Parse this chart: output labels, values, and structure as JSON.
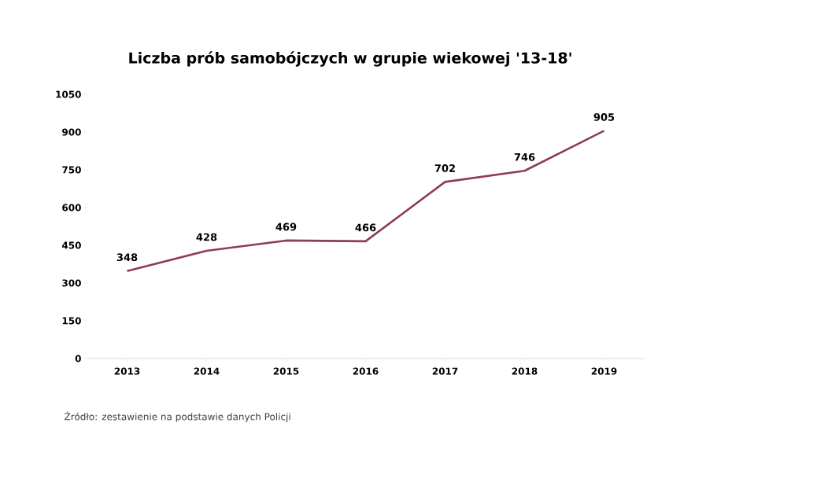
{
  "chart_data": {
    "type": "line",
    "title": "Liczba prób samobójczych  w grupie wiekowej '13-18'",
    "categories": [
      "2013",
      "2014",
      "2015",
      "2016",
      "2017",
      "2018",
      "2019"
    ],
    "values": [
      348,
      428,
      469,
      466,
      702,
      746,
      905
    ],
    "color": "#8e3b5e",
    "ylim": [
      0,
      1050
    ],
    "yticks": [
      0,
      150,
      300,
      450,
      600,
      750,
      900,
      1050
    ],
    "data_labels": true,
    "grid": false,
    "marker": "none",
    "annotations": [
      "Źródło: zestawienie na podstawie danych Policji"
    ]
  }
}
